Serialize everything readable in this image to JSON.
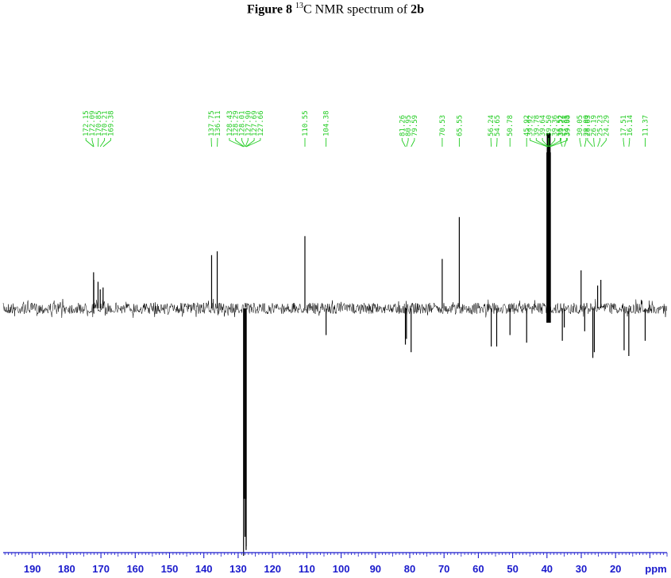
{
  "title": {
    "prefix": "Figure 8",
    "isotope_mass": "13",
    "text": "C NMR spectrum of",
    "compound": "2b"
  },
  "chart_data": {
    "type": "line",
    "title": "Figure 8 13C NMR spectrum of 2b",
    "xlabel": "ppm",
    "x_range_ppm": [
      198.5,
      5.0
    ],
    "x_reversed": true,
    "x_ticks": [
      190,
      180,
      170,
      160,
      150,
      140,
      130,
      120,
      110,
      100,
      90,
      80,
      70,
      60,
      50,
      40,
      30,
      20
    ],
    "x_tick_labels": [
      "190",
      "180",
      "170",
      "160",
      "150",
      "140",
      "130",
      "120",
      "110",
      "100",
      "90",
      "80",
      "70",
      "60",
      "50",
      "40",
      "30",
      "20"
    ],
    "unit_label": "ppm",
    "grid": false,
    "legend": "none",
    "y_range": [
      -1.4,
      1.0
    ],
    "peak_labels": [
      "172.15",
      "172.09",
      "170.85",
      "170.21",
      "169.38",
      "137.75",
      "136.11",
      "128.43",
      "128.29",
      "128.01",
      "127.90",
      "127.69",
      "127.66",
      "110.55",
      "104.38",
      "81.26",
      "80.95",
      "79.59",
      "70.53",
      "65.55",
      "56.24",
      "54.65",
      "50.78",
      "45.92",
      "39.92",
      "39.78",
      "39.64",
      "39.50",
      "39.36",
      "39.22",
      "39.08",
      "35.52",
      "34.95",
      "30.05",
      "29.00",
      "26.63",
      "26.19",
      "25.23",
      "24.29",
      "17.51",
      "16.14",
      "11.37"
    ],
    "peaks": [
      {
        "ppm": 172.15,
        "intensity": 0.19
      },
      {
        "ppm": 172.09,
        "intensity": 0.15
      },
      {
        "ppm": 170.85,
        "intensity": 0.14
      },
      {
        "ppm": 170.21,
        "intensity": 0.1
      },
      {
        "ppm": 169.38,
        "intensity": 0.11
      },
      {
        "ppm": 137.75,
        "intensity": 0.28
      },
      {
        "ppm": 136.11,
        "intensity": 0.3
      },
      {
        "ppm": 128.43,
        "intensity": -1.3
      },
      {
        "ppm": 128.29,
        "intensity": -1.0
      },
      {
        "ppm": 128.01,
        "intensity": -1.2
      },
      {
        "ppm": 127.9,
        "intensity": -1.0
      },
      {
        "ppm": 127.69,
        "intensity": -1.27
      },
      {
        "ppm": 127.66,
        "intensity": -1.25
      },
      {
        "ppm": 110.55,
        "intensity": 0.38
      },
      {
        "ppm": 104.38,
        "intensity": -0.14
      },
      {
        "ppm": 81.26,
        "intensity": -0.19
      },
      {
        "ppm": 80.95,
        "intensity": -0.16
      },
      {
        "ppm": 79.59,
        "intensity": -0.23
      },
      {
        "ppm": 70.53,
        "intensity": 0.26
      },
      {
        "ppm": 65.55,
        "intensity": 0.48
      },
      {
        "ppm": 56.24,
        "intensity": -0.2
      },
      {
        "ppm": 54.65,
        "intensity": -0.2
      },
      {
        "ppm": 50.78,
        "intensity": -0.14
      },
      {
        "ppm": 45.92,
        "intensity": -0.18
      },
      {
        "ppm": 39.92,
        "intensity": 0.92
      },
      {
        "ppm": 39.78,
        "intensity": 0.92
      },
      {
        "ppm": 39.64,
        "intensity": 0.92
      },
      {
        "ppm": 39.5,
        "intensity": 0.92
      },
      {
        "ppm": 39.36,
        "intensity": 0.92
      },
      {
        "ppm": 39.22,
        "intensity": 0.92
      },
      {
        "ppm": 39.08,
        "intensity": 0.92
      },
      {
        "ppm": 35.52,
        "intensity": -0.17
      },
      {
        "ppm": 34.95,
        "intensity": -0.1
      },
      {
        "ppm": 30.05,
        "intensity": 0.2
      },
      {
        "ppm": 29.0,
        "intensity": -0.12
      },
      {
        "ppm": 26.63,
        "intensity": -0.26
      },
      {
        "ppm": 26.19,
        "intensity": -0.23
      },
      {
        "ppm": 25.23,
        "intensity": 0.12
      },
      {
        "ppm": 24.29,
        "intensity": 0.15
      },
      {
        "ppm": 17.51,
        "intensity": -0.22
      },
      {
        "ppm": 16.14,
        "intensity": -0.25
      },
      {
        "ppm": 11.37,
        "intensity": -0.17
      }
    ],
    "colors": {
      "spectrum": "#000000",
      "peak_labels": "#22cc22",
      "axis": "#1a1acc"
    }
  }
}
